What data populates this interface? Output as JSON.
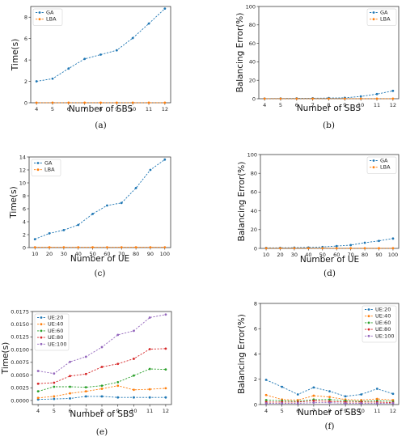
{
  "colors": {
    "GA": "#1f77b4",
    "LBA": "#ff7f0e",
    "UE:20": "#1f77b4",
    "UE:40": "#ff7f0e",
    "UE:60": "#2ca02c",
    "UE:80": "#d62728",
    "UE:100": "#9467bd"
  },
  "chart_data": [
    {
      "caption": "(a)",
      "type": "line",
      "xlabel": "Number of SBS",
      "ylabel": "Time(s)",
      "xlim": [
        4,
        12
      ],
      "ylim": [
        0,
        9
      ],
      "xticks": [
        4,
        5,
        6,
        7,
        8,
        9,
        10,
        11,
        12
      ],
      "yticks": [
        0,
        2,
        4,
        6,
        8
      ],
      "legend": "top-left",
      "series": [
        {
          "name": "GA",
          "x": [
            4,
            5,
            6,
            7,
            8,
            9,
            10,
            11,
            12
          ],
          "values": [
            2.0,
            2.25,
            3.2,
            4.1,
            4.5,
            4.9,
            6.05,
            7.4,
            8.8
          ]
        },
        {
          "name": "LBA",
          "x": [
            4,
            5,
            6,
            7,
            8,
            9,
            10,
            11,
            12
          ],
          "values": [
            0.01,
            0.01,
            0.01,
            0.01,
            0.01,
            0.01,
            0.01,
            0.01,
            0.01
          ]
        }
      ]
    },
    {
      "caption": "(b)",
      "type": "line",
      "xlabel": "Number of SBS",
      "ylabel": "Balancing Error(%)",
      "xlim": [
        4,
        12
      ],
      "ylim": [
        0,
        100
      ],
      "xticks": [
        4,
        5,
        6,
        7,
        8,
        9,
        10,
        11,
        12
      ],
      "yticks": [
        0,
        20,
        40,
        60,
        80,
        100
      ],
      "legend": "top-right",
      "series": [
        {
          "name": "GA",
          "x": [
            4,
            5,
            6,
            7,
            8,
            9,
            10,
            11,
            12
          ],
          "values": [
            0.2,
            0.3,
            0.4,
            0.5,
            0.7,
            1.0,
            2.5,
            5.0,
            8.5
          ]
        },
        {
          "name": "LBA",
          "x": [
            4,
            5,
            6,
            7,
            8,
            9,
            10,
            11,
            12
          ],
          "values": [
            0.1,
            0.1,
            0.1,
            0.1,
            0.1,
            0.1,
            0.1,
            0.1,
            0.1
          ]
        }
      ]
    },
    {
      "caption": "(c)",
      "type": "line",
      "xlabel": "Number of UE",
      "ylabel": "Time(s)",
      "xlim": [
        10,
        100
      ],
      "ylim": [
        0,
        14
      ],
      "xticks": [
        10,
        20,
        30,
        40,
        50,
        60,
        70,
        80,
        90,
        100
      ],
      "yticks": [
        0,
        2,
        4,
        6,
        8,
        10,
        12,
        14
      ],
      "legend": "top-left",
      "series": [
        {
          "name": "GA",
          "x": [
            10,
            20,
            30,
            40,
            50,
            60,
            70,
            80,
            90,
            100
          ],
          "values": [
            1.3,
            2.2,
            2.7,
            3.5,
            5.2,
            6.5,
            6.9,
            9.2,
            12.0,
            13.6
          ]
        },
        {
          "name": "LBA",
          "x": [
            10,
            20,
            30,
            40,
            50,
            60,
            70,
            80,
            90,
            100
          ],
          "values": [
            0.05,
            0.05,
            0.05,
            0.05,
            0.05,
            0.05,
            0.05,
            0.05,
            0.05,
            0.05
          ]
        }
      ]
    },
    {
      "caption": "(d)",
      "type": "line",
      "xlabel": "Number of UE",
      "ylabel": "Balancing Error(%)",
      "xlim": [
        10,
        100
      ],
      "ylim": [
        0,
        100
      ],
      "xticks": [
        10,
        20,
        30,
        40,
        50,
        60,
        70,
        80,
        90,
        100
      ],
      "yticks": [
        0,
        20,
        40,
        60,
        80,
        100
      ],
      "legend": "top-right",
      "series": [
        {
          "name": "GA",
          "x": [
            10,
            20,
            30,
            40,
            50,
            60,
            70,
            80,
            90,
            100
          ],
          "values": [
            0.5,
            0.6,
            0.8,
            1.0,
            1.5,
            2.5,
            3.5,
            6.0,
            8.0,
            10.5
          ]
        },
        {
          "name": "LBA",
          "x": [
            10,
            20,
            30,
            40,
            50,
            60,
            70,
            80,
            90,
            100
          ],
          "values": [
            0.2,
            0.2,
            0.2,
            0.2,
            0.2,
            0.2,
            0.2,
            0.2,
            0.2,
            0.2
          ]
        }
      ]
    },
    {
      "caption": "(e)",
      "type": "line",
      "xlabel": "Number of SBS",
      "ylabel": "Time(s)",
      "xlim": [
        4,
        12
      ],
      "ylim": [
        -0.0008,
        0.0175
      ],
      "xticks": [
        4,
        5,
        6,
        7,
        8,
        9,
        10,
        11,
        12
      ],
      "yticks": [
        "0.0000",
        "0.0025",
        "0.0050",
        "0.0075",
        "0.0100",
        "0.0125",
        "0.0150",
        "0.0175"
      ],
      "legend": "top-left",
      "series": [
        {
          "name": "UE:20",
          "x": [
            4,
            5,
            6,
            7,
            8,
            9,
            10,
            11,
            12
          ],
          "values": [
            0.0002,
            0.0003,
            0.0004,
            0.0008,
            0.0008,
            0.0006,
            0.0006,
            0.0006,
            0.0006
          ]
        },
        {
          "name": "UE:40",
          "x": [
            4,
            5,
            6,
            7,
            8,
            9,
            10,
            11,
            12
          ],
          "values": [
            0.0005,
            0.0008,
            0.0014,
            0.0018,
            0.0023,
            0.0029,
            0.0021,
            0.0022,
            0.0024
          ]
        },
        {
          "name": "UE:60",
          "x": [
            4,
            5,
            6,
            7,
            8,
            9,
            10,
            11,
            12
          ],
          "values": [
            0.0018,
            0.0027,
            0.0027,
            0.0026,
            0.0029,
            0.0036,
            0.0049,
            0.0062,
            0.0061
          ]
        },
        {
          "name": "UE:80",
          "x": [
            4,
            5,
            6,
            7,
            8,
            9,
            10,
            11,
            12
          ],
          "values": [
            0.0033,
            0.0035,
            0.0048,
            0.0052,
            0.0066,
            0.0072,
            0.0082,
            0.0101,
            0.0102
          ]
        },
        {
          "name": "UE:100",
          "x": [
            4,
            5,
            6,
            7,
            8,
            9,
            10,
            11,
            12
          ],
          "values": [
            0.0058,
            0.0053,
            0.0076,
            0.0086,
            0.0105,
            0.0129,
            0.0137,
            0.0163,
            0.0169
          ]
        }
      ]
    },
    {
      "caption": "(f)",
      "type": "line",
      "xlabel": "Number of SBS",
      "ylabel": "Balancing Error(%)",
      "xlim": [
        4,
        12
      ],
      "ylim": [
        0,
        8
      ],
      "xticks": [
        4,
        5,
        6,
        7,
        8,
        9,
        10,
        11,
        12
      ],
      "yticks": [
        0,
        2,
        4,
        6,
        8
      ],
      "legend": "top-right",
      "series": [
        {
          "name": "UE:20",
          "x": [
            4,
            5,
            6,
            7,
            8,
            9,
            10,
            11,
            12
          ],
          "values": [
            1.95,
            1.4,
            0.8,
            1.35,
            1.05,
            0.65,
            0.8,
            1.25,
            0.85
          ]
        },
        {
          "name": "UE:40",
          "x": [
            4,
            5,
            6,
            7,
            8,
            9,
            10,
            11,
            12
          ],
          "values": [
            0.75,
            0.4,
            0.35,
            0.7,
            0.6,
            0.4,
            0.35,
            0.45,
            0.35
          ]
        },
        {
          "name": "UE:60",
          "x": [
            4,
            5,
            6,
            7,
            8,
            9,
            10,
            11,
            12
          ],
          "values": [
            0.35,
            0.3,
            0.25,
            0.4,
            0.4,
            0.3,
            0.25,
            0.3,
            0.25
          ]
        },
        {
          "name": "UE:80",
          "x": [
            4,
            5,
            6,
            7,
            8,
            9,
            10,
            11,
            12
          ],
          "values": [
            0.2,
            0.2,
            0.2,
            0.3,
            0.25,
            0.2,
            0.2,
            0.2,
            0.15
          ]
        },
        {
          "name": "UE:100",
          "x": [
            4,
            5,
            6,
            7,
            8,
            9,
            10,
            11,
            12
          ],
          "values": [
            0.1,
            0.1,
            0.1,
            0.15,
            0.15,
            0.1,
            0.1,
            0.1,
            0.1
          ]
        }
      ]
    }
  ]
}
